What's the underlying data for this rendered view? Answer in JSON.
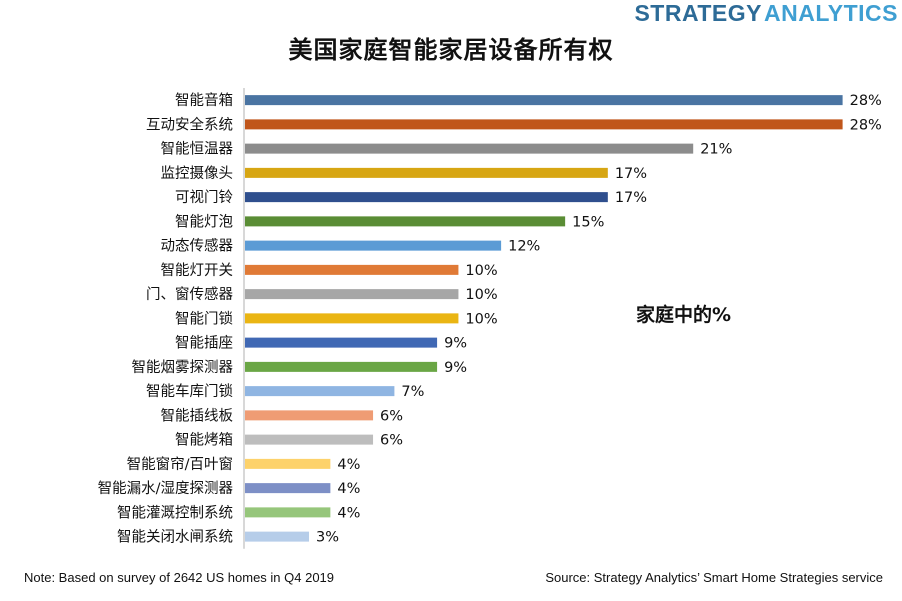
{
  "brand": {
    "word1": "STRATEGY",
    "word2": "ANALYTICS"
  },
  "chart_data": {
    "type": "bar",
    "orientation": "horizontal",
    "title": "美国家庭智能家居设备所有权",
    "annotation": "家庭中的%",
    "categories": [
      "智能音箱",
      "互动安全系统",
      "智能恒温器",
      "监控摄像头",
      "可视门铃",
      "智能灯泡",
      "动态传感器",
      "智能灯开关",
      "门、窗传感器",
      "智能门锁",
      "智能插座",
      "智能烟雾探测器",
      "智能车库门锁",
      "智能插线板",
      "智能烤箱",
      "智能窗帘/百叶窗",
      "智能漏水/湿度探测器",
      "智能灌溉控制系统",
      "智能关闭水闸系统"
    ],
    "values": [
      28,
      28,
      21,
      17,
      17,
      15,
      12,
      10,
      10,
      10,
      9,
      9,
      7,
      6,
      6,
      4,
      4,
      4,
      3
    ],
    "colors": [
      "#4a74a2",
      "#c0561b",
      "#8c8c8c",
      "#d7a613",
      "#2f4f8e",
      "#5a8d35",
      "#5b9bd5",
      "#e07a36",
      "#a6a6a6",
      "#eab513",
      "#4068b4",
      "#6aa645",
      "#8fb5e2",
      "#ef9c74",
      "#bdbdbd",
      "#fdd26b",
      "#7d8fc6",
      "#96c67b",
      "#b6cde9"
    ],
    "value_suffix": "%",
    "xlabel": "",
    "ylabel": "",
    "xlim": [
      0,
      28.3
    ],
    "grid": false,
    "axis_line_color": "#b0b0b0"
  },
  "footnotes": {
    "note": "Note: Based on survey of 2642 US homes in Q4 2019",
    "source": "Source: Strategy Analytics’ Smart Home Strategies service"
  }
}
